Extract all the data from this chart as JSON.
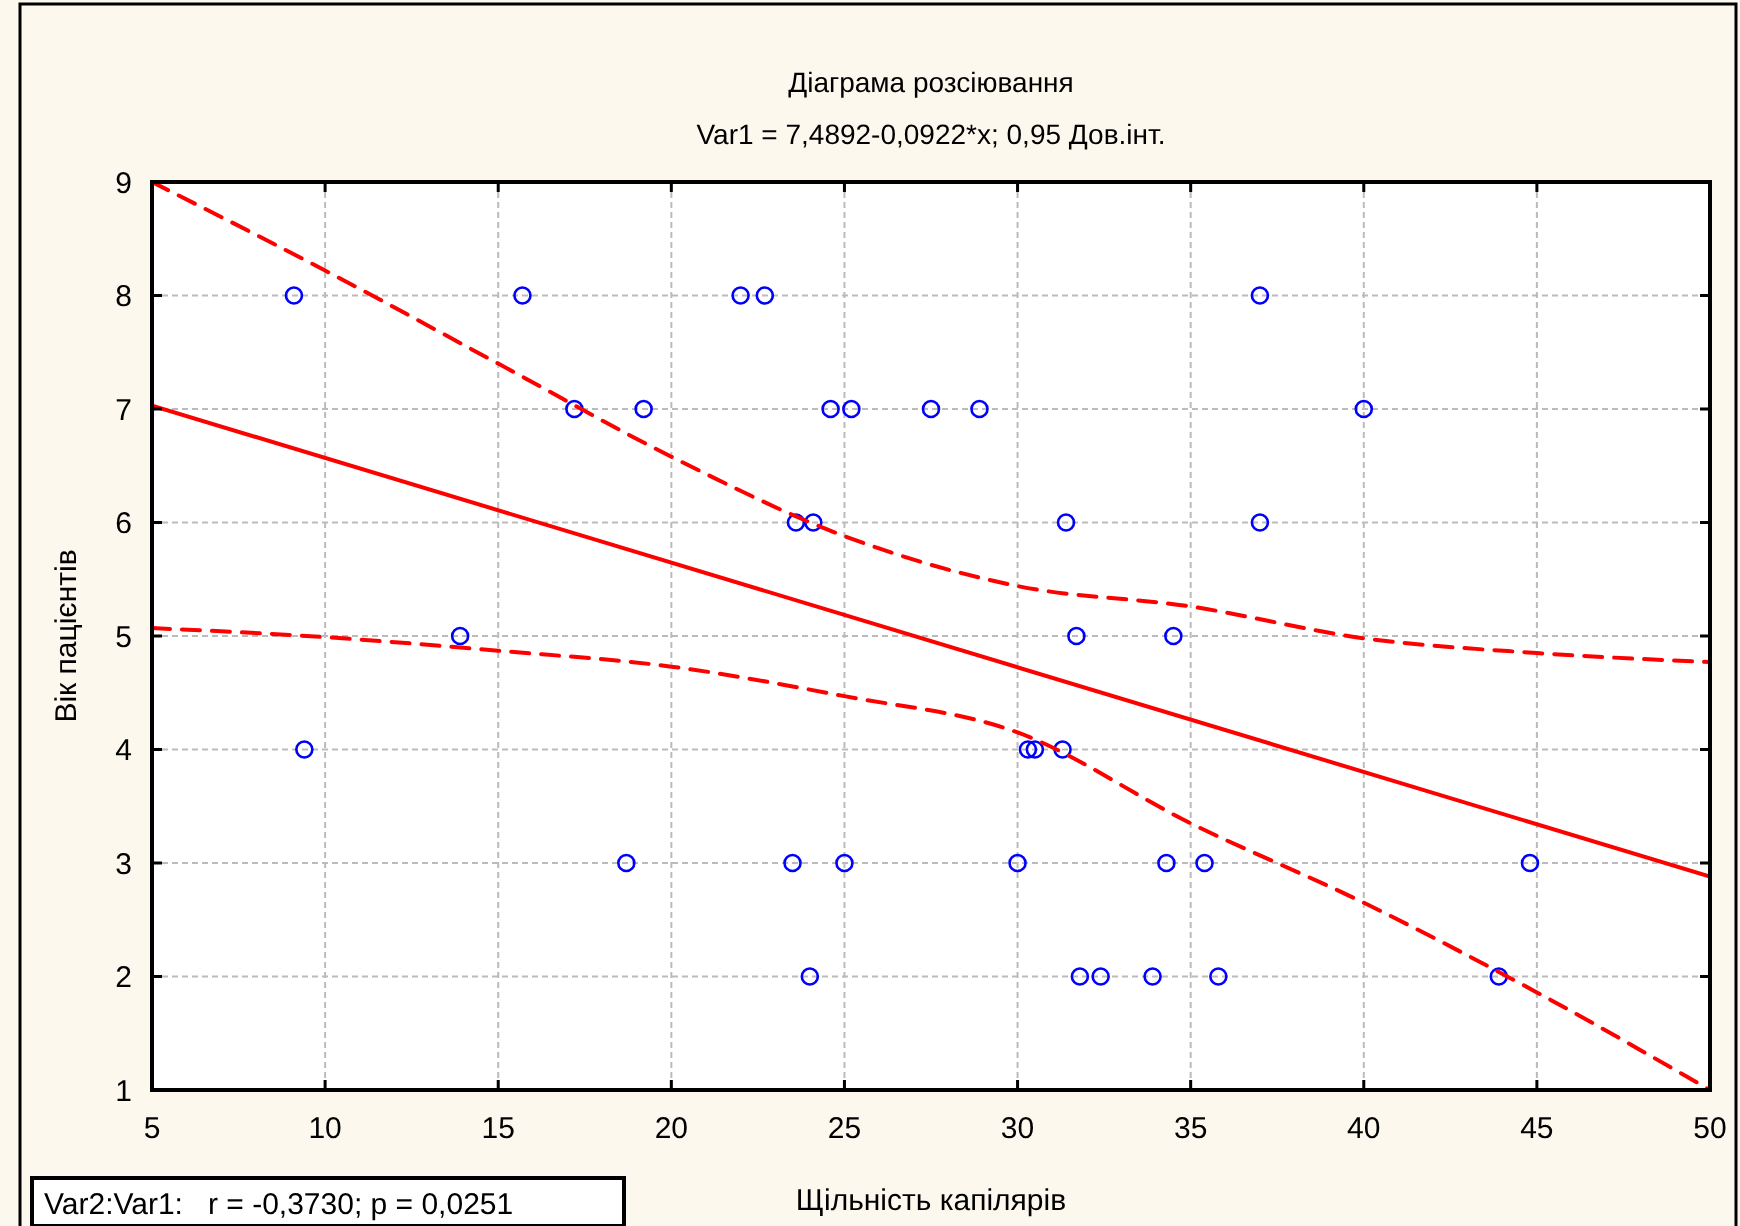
{
  "chart_data": {
    "type": "scatter",
    "title": "Діаграма розсіювання",
    "subtitle": "Var1 = 7,4892-0,0922*x; 0,95 Дов.інт.",
    "xlabel": "Щільність капілярів",
    "ylabel": "Вік пацієнтів",
    "annotations": [
      "Var2:Var1:   r = -0,3730; p = 0,0251"
    ],
    "xlim": [
      5,
      50
    ],
    "xticks": [
      5,
      10,
      15,
      20,
      25,
      30,
      35,
      40,
      45,
      50
    ],
    "ylim": [
      1,
      9
    ],
    "yticks": [
      1,
      2,
      3,
      4,
      5,
      6,
      7,
      8,
      9
    ],
    "grid": true,
    "series": [
      {
        "color": "#0000ff",
        "marker": "circle",
        "x": [
          9.1,
          15.7,
          22.0,
          22.7,
          37.0,
          17.2,
          19.2,
          24.6,
          25.2,
          27.5,
          28.9,
          40.0,
          23.6,
          24.1,
          31.4,
          37.0,
          13.9,
          31.7,
          34.5,
          9.4,
          30.3,
          30.5,
          31.3,
          18.7,
          23.5,
          25.0,
          30.0,
          34.3,
          35.4,
          44.8,
          24.0,
          31.8,
          32.4,
          33.9,
          35.8,
          43.9
        ],
        "values": [
          8,
          8,
          8,
          8,
          8,
          7,
          7,
          7,
          7,
          7,
          7,
          7,
          6,
          6,
          6,
          6,
          5,
          5,
          5,
          4,
          4,
          4,
          4,
          3,
          3,
          3,
          3,
          3,
          3,
          3,
          2,
          2,
          2,
          2,
          2,
          2
        ]
      },
      {
        "type": "line",
        "color": "#ff0000",
        "marker": "none",
        "line_style": "solid",
        "x": [
          5,
          50
        ],
        "values": [
          7.03,
          2.88
        ]
      },
      {
        "type": "line",
        "color": "#ff0000",
        "marker": "none",
        "line_style": "dashed",
        "x": [
          5,
          10,
          15,
          20,
          25,
          30,
          35,
          40,
          45,
          50
        ],
        "values": [
          9.0,
          8.22,
          7.4,
          6.58,
          5.88,
          5.44,
          5.26,
          4.98,
          4.85,
          4.77
        ]
      },
      {
        "type": "line",
        "color": "#ff0000",
        "marker": "none",
        "line_style": "dashed",
        "x": [
          5,
          10,
          15,
          20,
          25,
          30,
          35,
          40,
          45,
          50
        ],
        "values": [
          5.07,
          4.99,
          4.87,
          4.73,
          4.47,
          4.15,
          3.35,
          2.65,
          1.86,
          1.0
        ]
      }
    ]
  }
}
